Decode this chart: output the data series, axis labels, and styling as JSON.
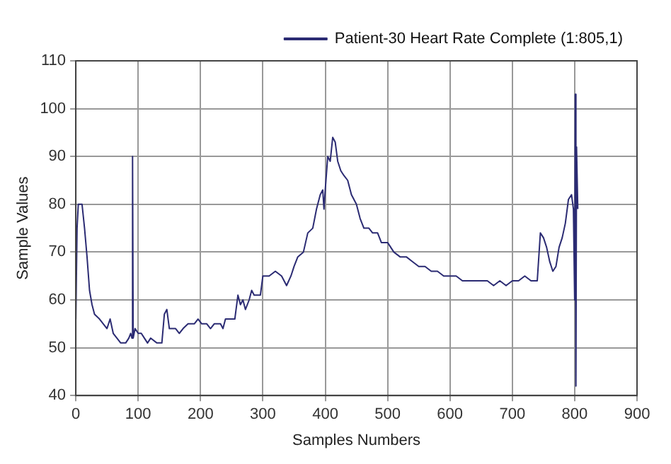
{
  "chart_data": {
    "type": "line",
    "xlabel": "Samples Numbers",
    "ylabel": "Sample Values",
    "xlim": [
      0,
      900
    ],
    "xticks": [
      0,
      100,
      200,
      300,
      400,
      500,
      600,
      700,
      800,
      900
    ],
    "ylim": [
      40,
      110
    ],
    "yticks": [
      40,
      50,
      60,
      70,
      80,
      90,
      100,
      110
    ],
    "grid": true,
    "legend": "top right",
    "marker": "none",
    "line_style": "solid",
    "series": [
      {
        "name": "Patient-30 Heart Rate Complete (1:805,1)",
        "color": "#2b2b73",
        "x": [
          0,
          2,
          4,
          10,
          14,
          18,
          22,
          26,
          30,
          38,
          44,
          50,
          55,
          60,
          66,
          72,
          80,
          85,
          88,
          90,
          91,
          92,
          95,
          100,
          105,
          110,
          115,
          120,
          130,
          138,
          142,
          146,
          150,
          160,
          166,
          172,
          180,
          190,
          196,
          202,
          210,
          216,
          222,
          232,
          236,
          240,
          255,
          260,
          264,
          268,
          272,
          278,
          282,
          286,
          296,
          300,
          310,
          320,
          330,
          338,
          345,
          350,
          356,
          365,
          372,
          380,
          386,
          392,
          396,
          398,
          400,
          404,
          408,
          412,
          416,
          420,
          425,
          430,
          436,
          442,
          450,
          456,
          462,
          470,
          476,
          484,
          490,
          500,
          510,
          520,
          530,
          540,
          550,
          560,
          570,
          580,
          590,
          600,
          610,
          620,
          630,
          640,
          650,
          660,
          670,
          680,
          690,
          700,
          710,
          720,
          730,
          740,
          745,
          750,
          755,
          760,
          765,
          770,
          775,
          780,
          785,
          790,
          795,
          798,
          800,
          801,
          802,
          803,
          805
        ],
        "values": [
          56,
          75,
          80,
          80,
          75,
          69,
          62,
          59,
          57,
          56,
          55,
          54,
          56,
          53,
          52,
          51,
          51,
          52,
          53,
          52,
          90,
          52,
          54,
          53,
          53,
          52,
          51,
          52,
          51,
          51,
          57,
          58,
          54,
          54,
          53,
          54,
          55,
          55,
          56,
          55,
          55,
          54,
          55,
          55,
          54,
          56,
          56,
          61,
          59,
          60,
          58,
          60,
          62,
          61,
          61,
          65,
          65,
          66,
          65,
          63,
          65,
          67,
          69,
          70,
          74,
          75,
          79,
          82,
          83,
          79,
          83,
          90,
          89,
          94,
          93,
          89,
          87,
          86,
          85,
          82,
          80,
          77,
          75,
          75,
          74,
          74,
          72,
          72,
          70,
          69,
          69,
          68,
          67,
          67,
          66,
          66,
          65,
          65,
          65,
          64,
          64,
          64,
          64,
          64,
          63,
          64,
          63,
          64,
          64,
          65,
          64,
          64,
          74,
          73,
          71,
          68,
          66,
          67,
          71,
          73,
          76,
          81,
          82,
          79,
          60,
          103,
          42,
          92,
          79
        ]
      }
    ]
  }
}
